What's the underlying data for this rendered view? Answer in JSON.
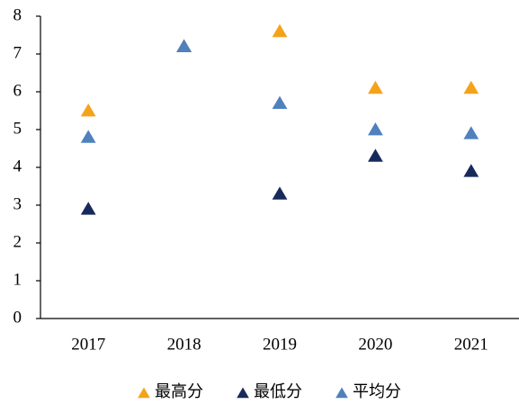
{
  "chart_data": {
    "type": "scatter",
    "categories": [
      "2017",
      "2018",
      "2019",
      "2020",
      "2021"
    ],
    "series": [
      {
        "name": "最高分",
        "color": "#f5a21b",
        "values": [
          5.5,
          7.2,
          7.6,
          6.1,
          6.1
        ]
      },
      {
        "name": "最低分",
        "color": "#172a5b",
        "values": [
          2.9,
          7.2,
          3.3,
          4.3,
          3.9
        ]
      },
      {
        "name": "平均分",
        "color": "#4f81bd",
        "values": [
          4.8,
          7.2,
          5.7,
          5.0,
          4.9
        ]
      }
    ],
    "ylim": [
      0,
      8
    ],
    "yticks": [
      0,
      1,
      2,
      3,
      4,
      5,
      6,
      7,
      8
    ],
    "grid": false,
    "legend": "bottom"
  }
}
